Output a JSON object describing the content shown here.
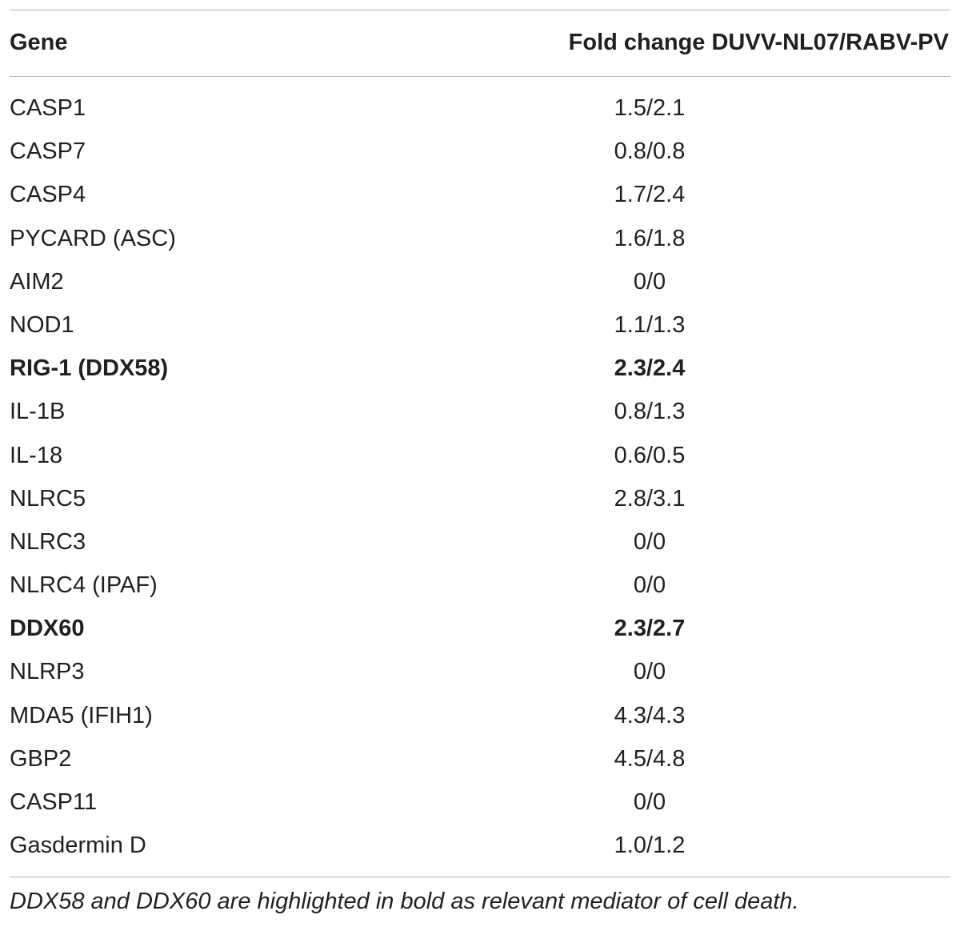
{
  "table": {
    "headers": {
      "gene": "Gene",
      "fold_change": "Fold change DUVV-NL07/RABV-PV"
    },
    "rows": [
      {
        "gene": "CASP1",
        "fold": "1.5/2.1",
        "bold": false
      },
      {
        "gene": "CASP7",
        "fold": "0.8/0.8",
        "bold": false
      },
      {
        "gene": "CASP4",
        "fold": "1.7/2.4",
        "bold": false
      },
      {
        "gene": "PYCARD (ASC)",
        "fold": "1.6/1.8",
        "bold": false
      },
      {
        "gene": "AIM2",
        "fold": "0/0",
        "bold": false
      },
      {
        "gene": "NOD1",
        "fold": "1.1/1.3",
        "bold": false
      },
      {
        "gene": "RIG-1 (DDX58)",
        "fold": "2.3/2.4",
        "bold": true
      },
      {
        "gene": "IL-1B",
        "fold": "0.8/1.3",
        "bold": false
      },
      {
        "gene": "IL-18",
        "fold": "0.6/0.5",
        "bold": false
      },
      {
        "gene": "NLRC5",
        "fold": "2.8/3.1",
        "bold": false
      },
      {
        "gene": "NLRC3",
        "fold": "0/0",
        "bold": false
      },
      {
        "gene": "NLRC4 (IPAF)",
        "fold": "0/0",
        "bold": false
      },
      {
        "gene": "DDX60",
        "fold": "2.3/2.7",
        "bold": true
      },
      {
        "gene": "NLRP3",
        "fold": "0/0",
        "bold": false
      },
      {
        "gene": "MDA5 (IFIH1)",
        "fold": "4.3/4.3",
        "bold": false
      },
      {
        "gene": "GBP2",
        "fold": "4.5/4.8",
        "bold": false
      },
      {
        "gene": "CASP11",
        "fold": "0/0",
        "bold": false
      },
      {
        "gene": "Gasdermin D",
        "fold": "1.0/1.2",
        "bold": false
      }
    ],
    "footnote": "DDX58 and DDX60 are highlighted in bold as relevant mediator of cell death."
  },
  "colors": {
    "text": "#231f20",
    "rule": "#b3b3b3"
  }
}
